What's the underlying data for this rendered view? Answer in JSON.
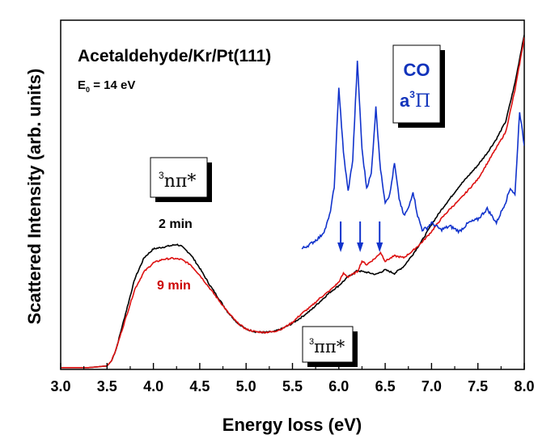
{
  "chart_data": {
    "type": "line",
    "title": "Acetaldehyde/Kr/Pt(111)",
    "subtitle": {
      "prefix": "E",
      "subscript": "0",
      "suffix": " = 14 eV"
    },
    "xlabel": "Energy loss (eV)",
    "ylabel": "Scattered Intensity (arb. units)",
    "xlim": [
      3.0,
      8.0
    ],
    "ylim": [
      0,
      100
    ],
    "x_ticks": [
      "3.0",
      "3.5",
      "4.0",
      "4.5",
      "5.0",
      "5.5",
      "6.0",
      "6.5",
      "7.0",
      "7.5",
      "8.0"
    ],
    "grid": false,
    "series": [
      {
        "name": "2 min",
        "color": "#000000",
        "x": [
          3.0,
          3.3,
          3.5,
          3.55,
          3.6,
          3.7,
          3.8,
          3.9,
          4.0,
          4.1,
          4.2,
          4.25,
          4.3,
          4.4,
          4.5,
          4.6,
          4.7,
          4.8,
          4.9,
          5.0,
          5.1,
          5.2,
          5.3,
          5.4,
          5.5,
          5.6,
          5.7,
          5.8,
          5.9,
          6.0,
          6.1,
          6.2,
          6.3,
          6.4,
          6.5,
          6.6,
          6.7,
          6.8,
          6.9,
          7.0,
          7.1,
          7.2,
          7.3,
          7.4,
          7.5,
          7.6,
          7.7,
          7.8,
          7.9,
          8.0
        ],
        "y": [
          0.5,
          0.5,
          1.0,
          2.5,
          6,
          16,
          26,
          32,
          34.5,
          35,
          35.5,
          35.8,
          35.3,
          33,
          29,
          24.5,
          20.5,
          16.5,
          13.5,
          11.5,
          10.8,
          10.6,
          10.8,
          11.8,
          13.2,
          15,
          17,
          19.5,
          22,
          24,
          26.5,
          28.3,
          27.8,
          27.2,
          28.5,
          27.5,
          29.5,
          33,
          37,
          41.5,
          45.5,
          49,
          52.5,
          55.5,
          58.5,
          62,
          66,
          71,
          82,
          96
        ]
      },
      {
        "name": "9 min",
        "color": "#dd1111",
        "x": [
          3.0,
          3.3,
          3.5,
          3.55,
          3.6,
          3.7,
          3.8,
          3.9,
          4.0,
          4.1,
          4.2,
          4.3,
          4.4,
          4.5,
          4.6,
          4.7,
          4.8,
          4.9,
          5.0,
          5.1,
          5.2,
          5.3,
          5.4,
          5.5,
          5.6,
          5.7,
          5.8,
          5.9,
          6.0,
          6.05,
          6.1,
          6.2,
          6.25,
          6.3,
          6.4,
          6.45,
          6.5,
          6.6,
          6.7,
          6.8,
          6.9,
          7.0,
          7.1,
          7.2,
          7.3,
          7.4,
          7.5,
          7.6,
          7.7,
          7.8,
          7.9,
          8.0
        ],
        "y": [
          0.5,
          0.5,
          1.0,
          2.5,
          6,
          14.5,
          23,
          28,
          30.5,
          31.5,
          31.8,
          31.5,
          30,
          27,
          23.5,
          20,
          16.5,
          13.5,
          11.5,
          10.8,
          10.6,
          10.8,
          11.8,
          13.5,
          16,
          18,
          20.5,
          22.5,
          25,
          27.5,
          26.5,
          28,
          31,
          30,
          32,
          33.5,
          31,
          32.5,
          32,
          34,
          36.5,
          39.5,
          43,
          46,
          48.5,
          51.5,
          54.5,
          59,
          63.5,
          68,
          80,
          95
        ]
      },
      {
        "name": "CO a³Π",
        "color": "#1133cc",
        "x": [
          5.6,
          5.7,
          5.8,
          5.85,
          5.9,
          5.95,
          6.0,
          6.05,
          6.1,
          6.15,
          6.2,
          6.25,
          6.3,
          6.35,
          6.4,
          6.45,
          6.5,
          6.55,
          6.6,
          6.65,
          6.7,
          6.75,
          6.8,
          6.85,
          6.9,
          6.95,
          7.0,
          7.1,
          7.2,
          7.3,
          7.4,
          7.5,
          7.6,
          7.7,
          7.8,
          7.85,
          7.9,
          7.95,
          8.0
        ],
        "y": [
          34.5,
          36,
          38,
          40,
          44,
          52,
          81,
          62,
          51,
          60,
          88,
          63,
          52,
          56,
          75,
          57,
          48,
          50,
          59,
          49,
          44,
          46,
          51,
          44,
          40,
          40.5,
          42,
          40,
          41,
          39.5,
          42,
          43,
          46,
          42,
          48,
          52,
          50,
          74,
          64
        ]
      }
    ],
    "annotations": {
      "npi_label": {
        "superscript": "3",
        "text": "nπ*"
      },
      "pipi_label": {
        "superscript": "3",
        "text": "ππ*"
      },
      "co_line1": "CO",
      "co_line2": {
        "prefix": "a",
        "superscript": "3",
        "symbol": "Π"
      },
      "label_2min": "2 min",
      "label_9min": "9 min"
    },
    "arrows_x": [
      6.02,
      6.23,
      6.44
    ],
    "colors": {
      "black": "#000000",
      "red": "#dd1111",
      "blue": "#1133cc",
      "red_label": "#cc0000",
      "blue_label": "#1133bb"
    }
  }
}
